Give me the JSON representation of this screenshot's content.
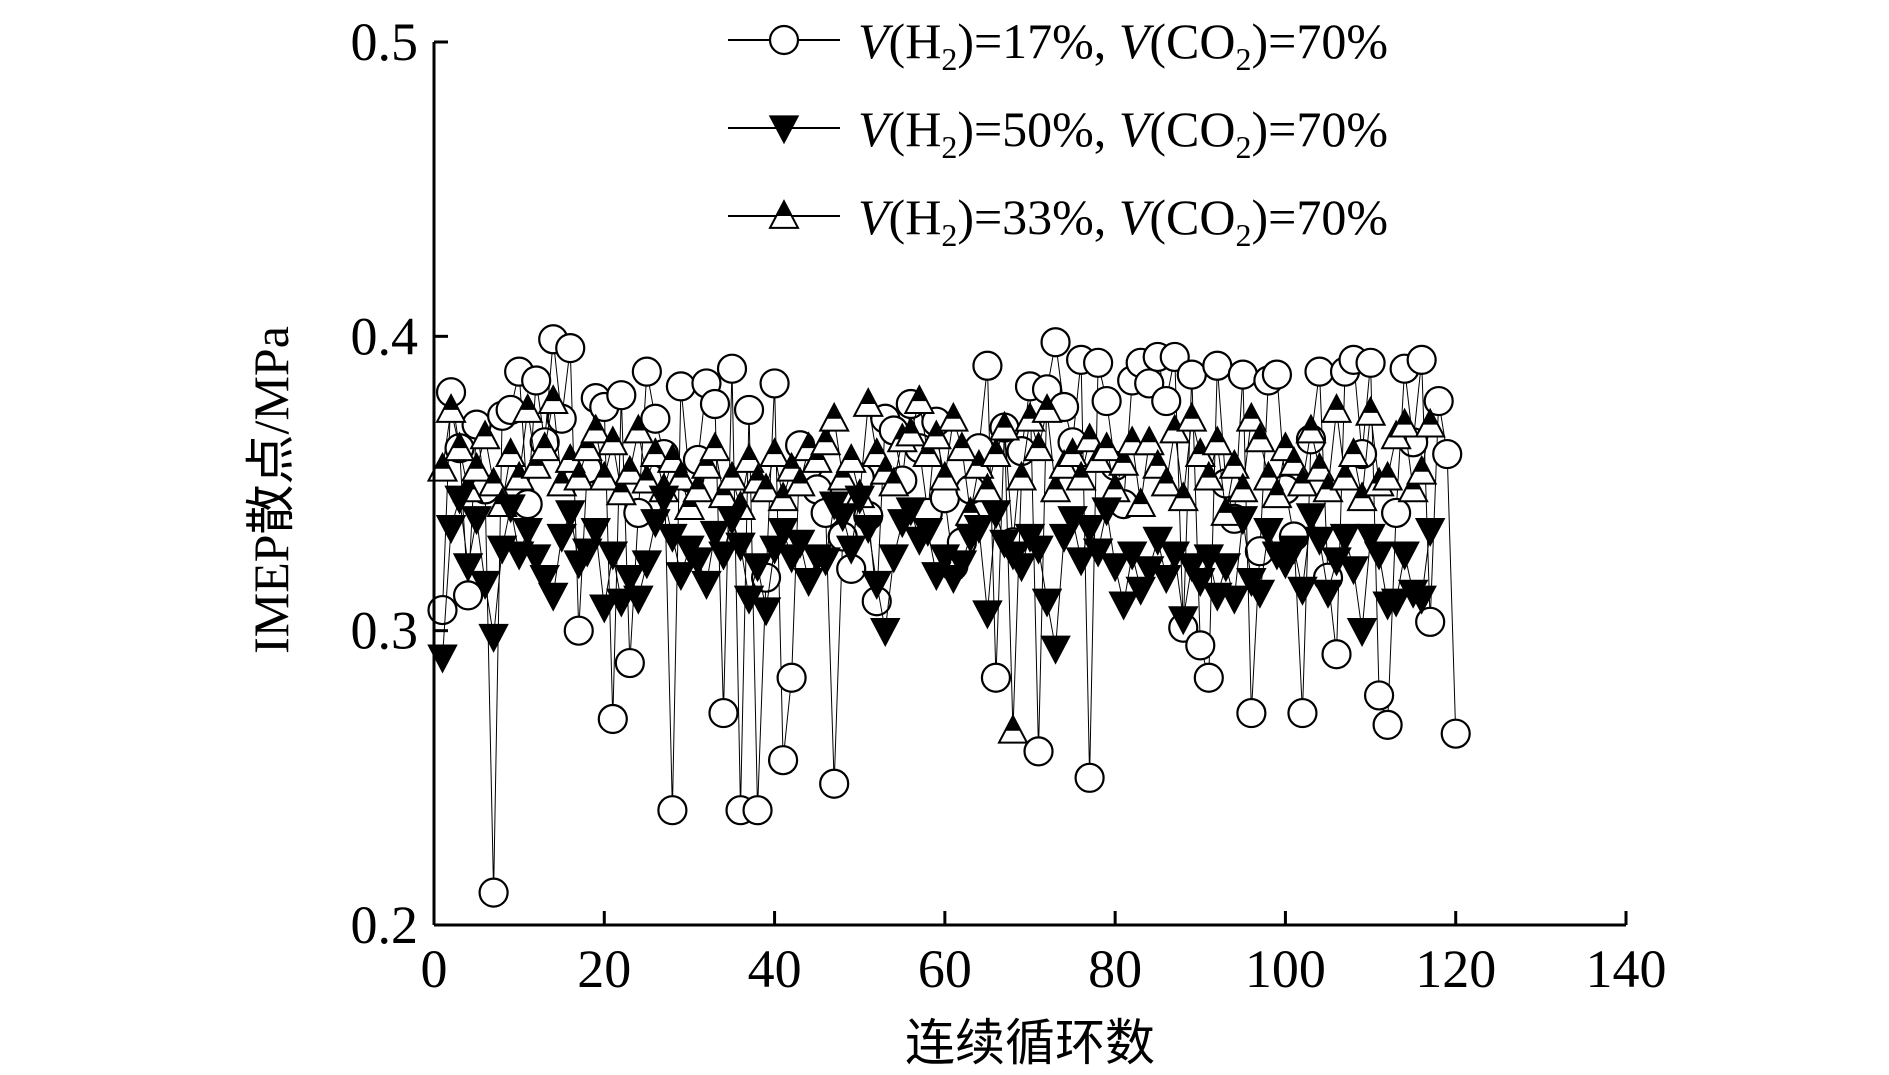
{
  "chart_data": {
    "type": "scatter",
    "title": "",
    "xlabel": "连续循环数",
    "ylabel": "IMEP散点/MPa",
    "xlim": [
      0,
      140
    ],
    "ylim": [
      0.2,
      0.5
    ],
    "xticks": [
      "0",
      "20",
      "40",
      "60",
      "80",
      "100",
      "120",
      "140"
    ],
    "yticks": [
      "0.2",
      "0.3",
      "0.4",
      "0.5"
    ],
    "grid": false,
    "legend_position": "top-right",
    "legend": [
      {
        "marker": "open-circle",
        "label": "V(H₂)=17%, V(CO₂)=70%",
        "var1": "V",
        "paren1": "(H",
        "sub1": "2",
        "mid": ")=17%, ",
        "var2": "V",
        "paren2": "(CO",
        "sub2": "2",
        "end": ")=70%"
      },
      {
        "marker": "filled-down-triangle",
        "label": "V(H₂)=50%, V(CO₂)=70%",
        "var1": "V",
        "paren1": "(H",
        "sub1": "2",
        "mid": ")=50%, ",
        "var2": "V",
        "paren2": "(CO",
        "sub2": "2",
        "end": ")=70%"
      },
      {
        "marker": "half-filled-up-triangle",
        "label": "V(H₂)=33%, V(CO₂)=70%",
        "var1": "V",
        "paren1": "(H",
        "sub1": "2",
        "mid": ")=33%, ",
        "var2": "V",
        "paren2": "(CO",
        "sub2": "2",
        "end": ")=70%"
      }
    ],
    "series": [
      {
        "name": "V(H₂)=17%, V(CO₂)=70%",
        "marker": "open-circle",
        "values": [
          0.307,
          0.381,
          0.362,
          0.312,
          0.37,
          0.348,
          0.211,
          0.373,
          0.375,
          0.388,
          0.343,
          0.385,
          0.364,
          0.399,
          0.372,
          0.396,
          0.3,
          0.355,
          0.379,
          0.376,
          0.27,
          0.38,
          0.289,
          0.34,
          0.388,
          0.372,
          0.36,
          0.239,
          0.383,
          0.352,
          0.358,
          0.384,
          0.377,
          0.272,
          0.389,
          0.239,
          0.375,
          0.239,
          0.318,
          0.384,
          0.256,
          0.284,
          0.363,
          0.356,
          0.348,
          0.34,
          0.248,
          0.332,
          0.321,
          0.352,
          0.339,
          0.31,
          0.372,
          0.368,
          0.351,
          0.377,
          0.362,
          0.34,
          0.371,
          0.345,
          0.322,
          0.33,
          0.348,
          0.362,
          0.39,
          0.284,
          0.369,
          0.33,
          0.361,
          0.383,
          0.259,
          0.382,
          0.398,
          0.376,
          0.364,
          0.392,
          0.25,
          0.391,
          0.378,
          0.356,
          0.343,
          0.385,
          0.391,
          0.384,
          0.393,
          0.378,
          0.393,
          0.301,
          0.387,
          0.295,
          0.284,
          0.39,
          0.35,
          0.338,
          0.387,
          0.272,
          0.327,
          0.385,
          0.387,
          0.348,
          0.332,
          0.272,
          0.365,
          0.388,
          0.318,
          0.292,
          0.388,
          0.392,
          0.36,
          0.391,
          0.278,
          0.268,
          0.34,
          0.389,
          0.364,
          0.392,
          0.303,
          0.378,
          0.36,
          0.265
        ]
      },
      {
        "name": "V(H₂)=50%, V(CO₂)=70%",
        "marker": "filled-down-triangle",
        "values": [
          0.291,
          0.335,
          0.345,
          0.322,
          0.338,
          0.316,
          0.298,
          0.328,
          0.342,
          0.326,
          0.334,
          0.325,
          0.318,
          0.312,
          0.332,
          0.34,
          0.323,
          0.327,
          0.334,
          0.308,
          0.326,
          0.31,
          0.318,
          0.311,
          0.323,
          0.337,
          0.345,
          0.332,
          0.319,
          0.328,
          0.324,
          0.316,
          0.333,
          0.326,
          0.338,
          0.329,
          0.311,
          0.322,
          0.307,
          0.328,
          0.334,
          0.325,
          0.33,
          0.317,
          0.325,
          0.324,
          0.343,
          0.339,
          0.328,
          0.345,
          0.335,
          0.316,
          0.3,
          0.325,
          0.337,
          0.341,
          0.331,
          0.334,
          0.319,
          0.325,
          0.318,
          0.323,
          0.332,
          0.335,
          0.306,
          0.34,
          0.33,
          0.326,
          0.322,
          0.332,
          0.328,
          0.31,
          0.294,
          0.332,
          0.338,
          0.324,
          0.335,
          0.327,
          0.341,
          0.322,
          0.309,
          0.326,
          0.314,
          0.321,
          0.331,
          0.318,
          0.326,
          0.304,
          0.322,
          0.317,
          0.325,
          0.312,
          0.322,
          0.311,
          0.338,
          0.317,
          0.313,
          0.334,
          0.326,
          0.323,
          0.328,
          0.314,
          0.339,
          0.331,
          0.313,
          0.324,
          0.332,
          0.321,
          0.3,
          0.332,
          0.326,
          0.309,
          0.31,
          0.326,
          0.313,
          0.311,
          0.334
        ]
      },
      {
        "name": "V(H₂)=33%, V(CO₂)=70%",
        "marker": "half-filled-up-triangle",
        "values": [
          0.355,
          0.375,
          0.362,
          0.348,
          0.355,
          0.366,
          0.35,
          0.343,
          0.36,
          0.352,
          0.375,
          0.356,
          0.362,
          0.378,
          0.35,
          0.358,
          0.352,
          0.362,
          0.368,
          0.352,
          0.364,
          0.347,
          0.354,
          0.368,
          0.351,
          0.36,
          0.348,
          0.358,
          0.352,
          0.342,
          0.348,
          0.356,
          0.362,
          0.346,
          0.352,
          0.342,
          0.358,
          0.351,
          0.348,
          0.36,
          0.345,
          0.355,
          0.35,
          0.362,
          0.358,
          0.364,
          0.372,
          0.352,
          0.358,
          0.346,
          0.377,
          0.36,
          0.354,
          0.35,
          0.365,
          0.367,
          0.378,
          0.36,
          0.366,
          0.352,
          0.372,
          0.362,
          0.34,
          0.356,
          0.348,
          0.36,
          0.369,
          0.266,
          0.352,
          0.372,
          0.362,
          0.375,
          0.348,
          0.356,
          0.36,
          0.352,
          0.365,
          0.358,
          0.362,
          0.348,
          0.357,
          0.364,
          0.343,
          0.364,
          0.356,
          0.35,
          0.368,
          0.345,
          0.372,
          0.36,
          0.352,
          0.364,
          0.34,
          0.356,
          0.348,
          0.372,
          0.365,
          0.352,
          0.346,
          0.362,
          0.357,
          0.35,
          0.368,
          0.355,
          0.348,
          0.375,
          0.352,
          0.36,
          0.345,
          0.374,
          0.35,
          0.352,
          0.366,
          0.37,
          0.348,
          0.354,
          0.37
        ]
      }
    ]
  }
}
